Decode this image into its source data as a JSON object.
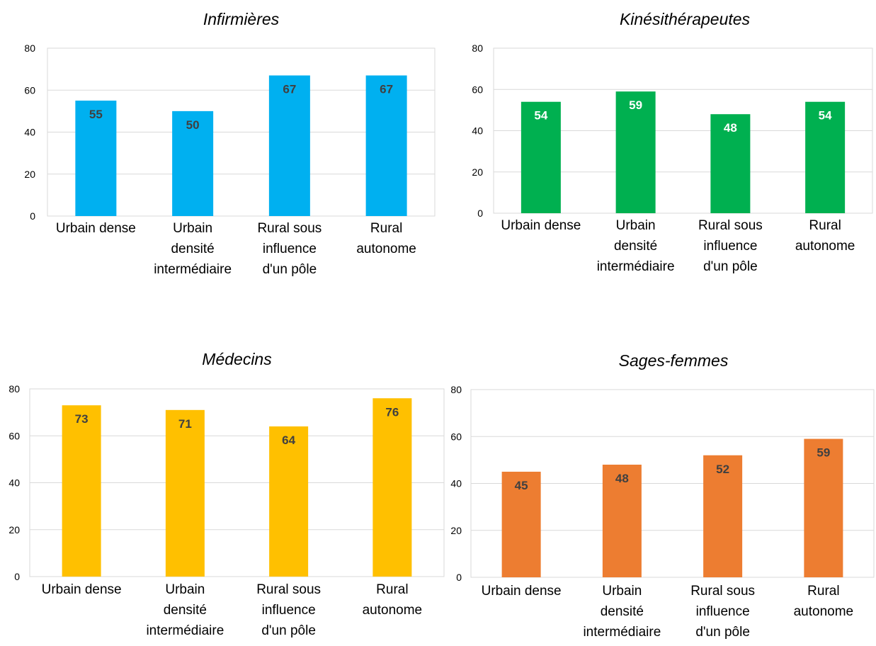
{
  "chart_data": [
    {
      "type": "bar",
      "title": "Infirmières",
      "categories": [
        [
          "Urbain dense"
        ],
        [
          "Urbain",
          "densité",
          "intermédiaire"
        ],
        [
          "Rural sous",
          "influence",
          "d'un pôle"
        ],
        [
          "Rural",
          "autonome"
        ]
      ],
      "values": [
        55,
        50,
        67,
        67
      ],
      "ylim": [
        0,
        80
      ],
      "yticks": [
        "0",
        "20",
        "40",
        "60",
        "80"
      ],
      "grid": true,
      "color": "#00B0F0",
      "label_color": "#404040"
    },
    {
      "type": "bar",
      "title": "Kinésithérapeutes",
      "categories": [
        [
          "Urbain dense"
        ],
        [
          "Urbain",
          "densité",
          "intermédiaire"
        ],
        [
          "Rural sous",
          "influence",
          "d'un pôle"
        ],
        [
          "Rural",
          "autonome"
        ]
      ],
      "values": [
        54,
        59,
        48,
        54
      ],
      "ylim": [
        0,
        80
      ],
      "yticks": [
        "0",
        "20",
        "40",
        "60",
        "80"
      ],
      "grid": true,
      "color": "#00B050",
      "label_color": "#FFFFFF"
    },
    {
      "type": "bar",
      "title": "Médecins",
      "categories": [
        [
          "Urbain dense"
        ],
        [
          "Urbain",
          "densité",
          "intermédiaire"
        ],
        [
          "Rural sous",
          "influence",
          "d'un pôle"
        ],
        [
          "Rural",
          "autonome"
        ]
      ],
      "values": [
        73,
        71,
        64,
        76
      ],
      "ylim": [
        0,
        80
      ],
      "yticks": [
        "0",
        "20",
        "40",
        "60",
        "80"
      ],
      "grid": true,
      "color": "#FFC000",
      "label_color": "#404040"
    },
    {
      "type": "bar",
      "title": "Sages-femmes",
      "categories": [
        [
          "Urbain dense"
        ],
        [
          "Urbain",
          "densité",
          "intermédiaire"
        ],
        [
          "Rural sous",
          "influence",
          "d'un pôle"
        ],
        [
          "Rural",
          "autonome"
        ]
      ],
      "values": [
        45,
        48,
        52,
        59
      ],
      "ylim": [
        0,
        80
      ],
      "yticks": [
        "0",
        "20",
        "40",
        "60",
        "80"
      ],
      "grid": true,
      "color": "#ED7D31",
      "label_color": "#404040"
    }
  ]
}
